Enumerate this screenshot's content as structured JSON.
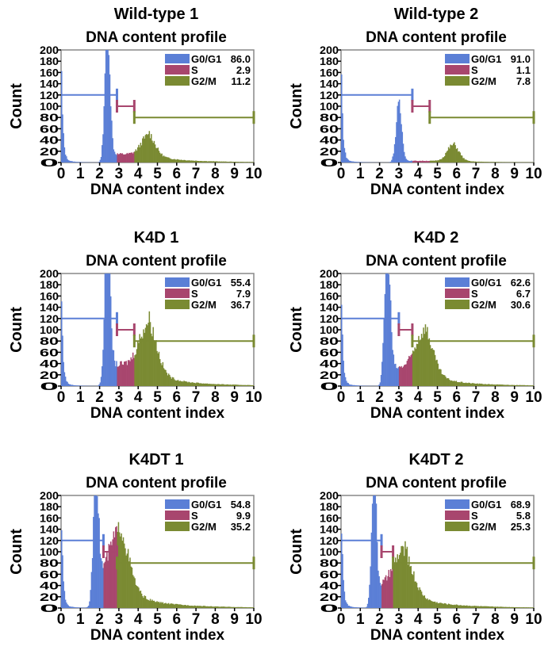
{
  "colors": {
    "g1": "#5b7fd6",
    "s": "#a8466e",
    "g2": "#7a8a32",
    "frame": "#888888"
  },
  "chart_data": [
    {
      "type": "bar",
      "title": "Wild-type 1",
      "subtitle": "DNA content profile",
      "xlabel": "DNA content index",
      "ylabel": "Count",
      "xlim": [
        0,
        10
      ],
      "ylim": [
        0,
        200
      ],
      "xticks": [
        "0",
        "1",
        "2",
        "3",
        "4",
        "5",
        "6",
        "7",
        "8",
        "9",
        "10"
      ],
      "yticks": [
        "0",
        "20",
        "40",
        "60",
        "80",
        "100",
        "120",
        "140",
        "160",
        "180",
        "200"
      ],
      "legend": [
        {
          "label": "G0/G1",
          "value": "86.0"
        },
        {
          "label": "S",
          "value": "2.9"
        },
        {
          "label": "G2/M",
          "value": "11.2"
        }
      ],
      "gates": {
        "g1_end": 2.9,
        "s_end": 3.8,
        "levels": [
          120,
          100,
          80
        ]
      },
      "peaks": {
        "g1_pos": 2.4,
        "g1_height": 260,
        "g1_width": 0.13,
        "s_level": 15,
        "g2_pos": 4.5,
        "g2_height": 32,
        "g2_width": 0.35,
        "tail": 8
      }
    },
    {
      "type": "bar",
      "title": "Wild-type 2",
      "subtitle": "DNA content profile",
      "xlabel": "DNA content index",
      "ylabel": "Count",
      "xlim": [
        0,
        10
      ],
      "ylim": [
        0,
        200
      ],
      "xticks": [
        "0",
        "1",
        "2",
        "3",
        "4",
        "5",
        "6",
        "7",
        "8",
        "9",
        "10"
      ],
      "yticks": [
        "0",
        "20",
        "40",
        "60",
        "80",
        "100",
        "120",
        "140",
        "160",
        "180",
        "200"
      ],
      "legend": [
        {
          "label": "G0/G1",
          "value": "91.0"
        },
        {
          "label": "S",
          "value": "1.1"
        },
        {
          "label": "G2/M",
          "value": "7.8"
        }
      ],
      "gates": {
        "g1_end": 3.7,
        "s_end": 4.6,
        "levels": [
          120,
          100,
          80
        ]
      },
      "peaks": {
        "g1_pos": 3.0,
        "g1_height": 100,
        "g1_width": 0.15,
        "s_level": 3,
        "g2_pos": 5.8,
        "g2_height": 28,
        "g2_width": 0.3,
        "tail": 2
      }
    },
    {
      "type": "bar",
      "title": "K4D 1",
      "subtitle": "DNA content profile",
      "xlabel": "DNA content index",
      "ylabel": "Count",
      "xlim": [
        0,
        10
      ],
      "ylim": [
        0,
        200
      ],
      "xticks": [
        "0",
        "1",
        "2",
        "3",
        "4",
        "5",
        "6",
        "7",
        "8",
        "9",
        "10"
      ],
      "yticks": [
        "0",
        "20",
        "40",
        "60",
        "80",
        "100",
        "120",
        "140",
        "160",
        "180",
        "200"
      ],
      "legend": [
        {
          "label": "G0/G1",
          "value": "55.4"
        },
        {
          "label": "S",
          "value": "7.9"
        },
        {
          "label": "G2/M",
          "value": "36.7"
        }
      ],
      "gates": {
        "g1_end": 2.9,
        "s_end": 3.8,
        "levels": [
          120,
          100,
          80
        ]
      },
      "peaks": {
        "g1_pos": 2.4,
        "g1_height": 260,
        "g1_width": 0.14,
        "s_level": 38,
        "g2_pos": 4.5,
        "g2_height": 72,
        "g2_width": 0.45,
        "tail": 14
      }
    },
    {
      "type": "bar",
      "title": "K4D 2",
      "subtitle": "DNA content profile",
      "xlabel": "DNA content index",
      "ylabel": "Count",
      "xlim": [
        0,
        10
      ],
      "ylim": [
        0,
        200
      ],
      "xticks": [
        "0",
        "1",
        "2",
        "3",
        "4",
        "5",
        "6",
        "7",
        "8",
        "9",
        "10"
      ],
      "yticks": [
        "0",
        "20",
        "40",
        "60",
        "80",
        "100",
        "120",
        "140",
        "160",
        "180",
        "200"
      ],
      "legend": [
        {
          "label": "G0/G1",
          "value": "62.6"
        },
        {
          "label": "S",
          "value": "6.7"
        },
        {
          "label": "G2/M",
          "value": "30.6"
        }
      ],
      "gates": {
        "g1_end": 3.0,
        "s_end": 3.7,
        "levels": [
          120,
          100,
          80
        ]
      },
      "peaks": {
        "g1_pos": 2.4,
        "g1_height": 260,
        "g1_width": 0.14,
        "s_level": 32,
        "g2_pos": 4.3,
        "g2_height": 65,
        "g2_width": 0.45,
        "tail": 12
      }
    },
    {
      "type": "bar",
      "title": "K4DT 1",
      "subtitle": "DNA content profile",
      "xlabel": "DNA content index",
      "ylabel": "Count",
      "xlim": [
        0,
        10
      ],
      "ylim": [
        0,
        200
      ],
      "xticks": [
        "0",
        "1",
        "2",
        "3",
        "4",
        "5",
        "6",
        "7",
        "8",
        "9",
        "10"
      ],
      "yticks": [
        "0",
        "20",
        "40",
        "60",
        "80",
        "100",
        "120",
        "140",
        "160",
        "180",
        "200"
      ],
      "legend": [
        {
          "label": "G0/G1",
          "value": "54.8"
        },
        {
          "label": "S",
          "value": "9.9"
        },
        {
          "label": "G2/M",
          "value": "35.2"
        }
      ],
      "gates": {
        "g1_end": 2.2,
        "s_end": 2.9,
        "levels": [
          120,
          100,
          80
        ]
      },
      "peaks": {
        "g1_pos": 1.8,
        "g1_height": 250,
        "g1_width": 0.13,
        "s_level": 50,
        "g2_pos": 3.0,
        "g2_height": 85,
        "g2_width": 0.5,
        "tail": 20
      }
    },
    {
      "type": "bar",
      "title": "K4DT 2",
      "subtitle": "DNA content profile",
      "xlabel": "DNA content index",
      "ylabel": "Count",
      "xlim": [
        0,
        10
      ],
      "ylim": [
        0,
        200
      ],
      "xticks": [
        "0",
        "1",
        "2",
        "3",
        "4",
        "5",
        "6",
        "7",
        "8",
        "9",
        "10"
      ],
      "yticks": [
        "0",
        "20",
        "40",
        "60",
        "80",
        "100",
        "120",
        "140",
        "160",
        "180",
        "200"
      ],
      "legend": [
        {
          "label": "G0/G1",
          "value": "68.9"
        },
        {
          "label": "S",
          "value": "5.8"
        },
        {
          "label": "G2/M",
          "value": "25.3"
        }
      ],
      "gates": {
        "g1_end": 2.1,
        "s_end": 2.7,
        "levels": [
          120,
          100,
          80
        ]
      },
      "peaks": {
        "g1_pos": 1.7,
        "g1_height": 250,
        "g1_width": 0.12,
        "s_level": 38,
        "g2_pos": 3.2,
        "g2_height": 60,
        "g2_width": 0.5,
        "tail": 16
      }
    }
  ]
}
